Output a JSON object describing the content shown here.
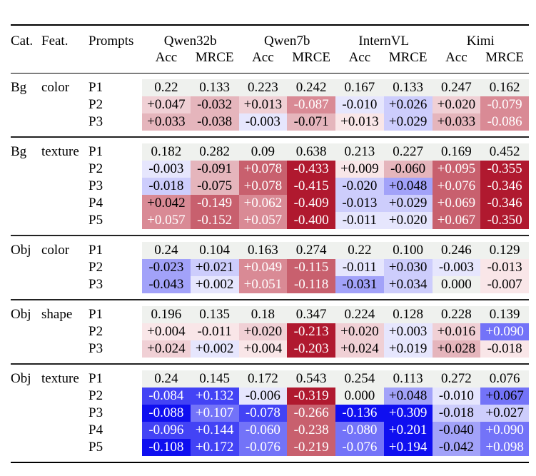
{
  "header": {
    "cat": "Cat.",
    "feat": "Feat.",
    "prompts": "Prompts",
    "models": [
      "Qwen32b",
      "Qwen7b",
      "InternVL",
      "Kimi"
    ],
    "metrics": [
      "Acc",
      "MRCE",
      "Acc",
      "MRCE",
      "Acc",
      "MRCE",
      "Acc",
      "MRCE"
    ]
  },
  "colors": {
    "neutral": "#eff1ee",
    "red_scale": [
      "#f9e6e8",
      "#f0d0d5",
      "#e5b5bc",
      "#d98a95",
      "#c8606e",
      "#b0192f"
    ],
    "blue_scale": [
      "#e6e6fd",
      "#cdcdfc",
      "#a2a2f9",
      "#7373f8",
      "#4343f5",
      "#0f0ff0"
    ]
  },
  "groups": [
    {
      "cat": "Bg",
      "feat": "color",
      "rows": [
        {
          "prompt": "P1",
          "cells": [
            [
              "0.22",
              "n",
              0
            ],
            [
              "0.133",
              "n",
              0
            ],
            [
              "0.223",
              "n",
              0
            ],
            [
              "0.242",
              "n",
              0
            ],
            [
              "0.167",
              "n",
              0
            ],
            [
              "0.133",
              "n",
              0
            ],
            [
              "0.247",
              "n",
              0
            ],
            [
              "0.162",
              "n",
              0
            ]
          ]
        },
        {
          "prompt": "P2",
          "cells": [
            [
              "+0.047",
              "r2",
              0
            ],
            [
              "-0.032",
              "r3",
              0
            ],
            [
              "+0.013",
              "r2",
              0
            ],
            [
              "-0.087",
              "r4",
              1
            ],
            [
              "-0.010",
              "b1",
              0
            ],
            [
              "+0.026",
              "b2",
              0
            ],
            [
              "+0.020",
              "r2",
              0
            ],
            [
              "-0.079",
              "r4",
              1
            ]
          ]
        },
        {
          "prompt": "P3",
          "cells": [
            [
              "+0.033",
              "r3",
              0
            ],
            [
              "-0.038",
              "r3",
              0
            ],
            [
              "-0.003",
              "b1",
              0
            ],
            [
              "-0.071",
              "r3",
              0
            ],
            [
              "+0.013",
              "r1",
              0
            ],
            [
              "+0.029",
              "b2",
              0
            ],
            [
              "+0.033",
              "r3",
              0
            ],
            [
              "-0.086",
              "r4",
              1
            ]
          ]
        }
      ]
    },
    {
      "cat": "Bg",
      "feat": "texture",
      "rows": [
        {
          "prompt": "P1",
          "cells": [
            [
              "0.182",
              "n",
              0
            ],
            [
              "0.282",
              "n",
              0
            ],
            [
              "0.09",
              "n",
              0
            ],
            [
              "0.638",
              "n",
              0
            ],
            [
              "0.213",
              "n",
              0
            ],
            [
              "0.227",
              "n",
              0
            ],
            [
              "0.169",
              "n",
              0
            ],
            [
              "0.452",
              "n",
              0
            ]
          ]
        },
        {
          "prompt": "P2",
          "cells": [
            [
              "-0.003",
              "b1",
              0
            ],
            [
              "-0.091",
              "r3",
              0
            ],
            [
              "+0.078",
              "r5",
              1
            ],
            [
              "-0.433",
              "r6",
              1
            ],
            [
              "+0.009",
              "r1",
              0
            ],
            [
              "-0.060",
              "r3",
              0
            ],
            [
              "+0.095",
              "r5",
              1
            ],
            [
              "-0.355",
              "r6",
              1
            ]
          ]
        },
        {
          "prompt": "P3",
          "cells": [
            [
              "-0.018",
              "b2",
              0
            ],
            [
              "-0.075",
              "r3",
              0
            ],
            [
              "+0.078",
              "r5",
              1
            ],
            [
              "-0.415",
              "r6",
              1
            ],
            [
              "-0.020",
              "b2",
              0
            ],
            [
              "+0.048",
              "b3",
              0
            ],
            [
              "+0.076",
              "r5",
              1
            ],
            [
              "-0.346",
              "r6",
              1
            ]
          ]
        },
        {
          "prompt": "P4",
          "cells": [
            [
              "+0.042",
              "r4",
              0
            ],
            [
              "-0.149",
              "r5",
              1
            ],
            [
              "+0.062",
              "r4",
              1
            ],
            [
              "-0.409",
              "r6",
              1
            ],
            [
              "-0.013",
              "b2",
              0
            ],
            [
              "+0.029",
              "b2",
              0
            ],
            [
              "+0.069",
              "r5",
              1
            ],
            [
              "-0.346",
              "r6",
              1
            ]
          ]
        },
        {
          "prompt": "P5",
          "cells": [
            [
              "+0.057",
              "r4",
              1
            ],
            [
              "-0.152",
              "r5",
              1
            ],
            [
              "+0.057",
              "r4",
              1
            ],
            [
              "-0.400",
              "r6",
              1
            ],
            [
              "-0.011",
              "b1",
              0
            ],
            [
              "+0.020",
              "b1",
              0
            ],
            [
              "+0.067",
              "r5",
              1
            ],
            [
              "-0.350",
              "r6",
              1
            ]
          ]
        }
      ]
    },
    {
      "cat": "Obj",
      "feat": "color",
      "rows": [
        {
          "prompt": "P1",
          "cells": [
            [
              "0.24",
              "n",
              0
            ],
            [
              "0.104",
              "n",
              0
            ],
            [
              "0.163",
              "n",
              0
            ],
            [
              "0.274",
              "n",
              0
            ],
            [
              "0.22",
              "n",
              0
            ],
            [
              "0.100",
              "n",
              0
            ],
            [
              "0.246",
              "n",
              0
            ],
            [
              "0.129",
              "n",
              0
            ]
          ]
        },
        {
          "prompt": "P2",
          "cells": [
            [
              "-0.023",
              "b3",
              0
            ],
            [
              "+0.021",
              "b2",
              0
            ],
            [
              "+0.049",
              "r4",
              1
            ],
            [
              "-0.115",
              "r5",
              1
            ],
            [
              "-0.011",
              "b1",
              0
            ],
            [
              "+0.030",
              "b2",
              0
            ],
            [
              "-0.003",
              "b1",
              0
            ],
            [
              "-0.013",
              "r1",
              0
            ]
          ]
        },
        {
          "prompt": "P3",
          "cells": [
            [
              "-0.043",
              "b3",
              0
            ],
            [
              "+0.002",
              "b1",
              0
            ],
            [
              "+0.051",
              "r4",
              1
            ],
            [
              "-0.118",
              "r5",
              1
            ],
            [
              "-0.031",
              "b3",
              0
            ],
            [
              "+0.034",
              "b2",
              0
            ],
            [
              "0.000",
              "n",
              0
            ],
            [
              "-0.007",
              "r1",
              0
            ]
          ]
        }
      ]
    },
    {
      "cat": "Obj",
      "feat": "shape",
      "rows": [
        {
          "prompt": "P1",
          "cells": [
            [
              "0.196",
              "n",
              0
            ],
            [
              "0.135",
              "n",
              0
            ],
            [
              "0.18",
              "n",
              0
            ],
            [
              "0.347",
              "n",
              0
            ],
            [
              "0.224",
              "n",
              0
            ],
            [
              "0.128",
              "n",
              0
            ],
            [
              "0.228",
              "n",
              0
            ],
            [
              "0.139",
              "n",
              0
            ]
          ]
        },
        {
          "prompt": "P2",
          "cells": [
            [
              "+0.004",
              "r1",
              0
            ],
            [
              "-0.011",
              "r1",
              0
            ],
            [
              "+0.020",
              "r2",
              0
            ],
            [
              "-0.213",
              "r6",
              1
            ],
            [
              "+0.020",
              "r2",
              0
            ],
            [
              "+0.003",
              "b1",
              0
            ],
            [
              "+0.016",
              "r2",
              0
            ],
            [
              "+0.090",
              "b4",
              1
            ]
          ]
        },
        {
          "prompt": "P3",
          "cells": [
            [
              "+0.024",
              "r2",
              0
            ],
            [
              "+0.002",
              "b1",
              0
            ],
            [
              "+0.004",
              "r1",
              0
            ],
            [
              "-0.203",
              "r6",
              1
            ],
            [
              "+0.024",
              "r2",
              0
            ],
            [
              "+0.019",
              "b1",
              0
            ],
            [
              "+0.028",
              "r3",
              0
            ],
            [
              "-0.018",
              "r1",
              0
            ]
          ]
        }
      ]
    },
    {
      "cat": "Obj",
      "feat": "texture",
      "rows": [
        {
          "prompt": "P1",
          "cells": [
            [
              "0.24",
              "n",
              0
            ],
            [
              "0.145",
              "n",
              0
            ],
            [
              "0.172",
              "n",
              0
            ],
            [
              "0.543",
              "n",
              0
            ],
            [
              "0.254",
              "n",
              0
            ],
            [
              "0.113",
              "n",
              0
            ],
            [
              "0.272",
              "n",
              0
            ],
            [
              "0.076",
              "n",
              0
            ]
          ]
        },
        {
          "prompt": "P2",
          "cells": [
            [
              "-0.084",
              "b5",
              1
            ],
            [
              "+0.132",
              "b5",
              1
            ],
            [
              "-0.006",
              "b1",
              0
            ],
            [
              "-0.319",
              "r6",
              1
            ],
            [
              "0.000",
              "n",
              0
            ],
            [
              "+0.048",
              "b3",
              0
            ],
            [
              "-0.010",
              "b1",
              0
            ],
            [
              "+0.067",
              "b4",
              0
            ]
          ]
        },
        {
          "prompt": "P3",
          "cells": [
            [
              "-0.088",
              "b6",
              1
            ],
            [
              "+0.107",
              "b4",
              1
            ],
            [
              "-0.078",
              "b5",
              1
            ],
            [
              "-0.266",
              "r5",
              1
            ],
            [
              "-0.136",
              "b6",
              1
            ],
            [
              "+0.309",
              "b6",
              1
            ],
            [
              "-0.018",
              "b2",
              0
            ],
            [
              "+0.027",
              "b2",
              0
            ]
          ]
        },
        {
          "prompt": "P4",
          "cells": [
            [
              "-0.096",
              "b5",
              1
            ],
            [
              "+0.144",
              "b5",
              1
            ],
            [
              "-0.060",
              "b4",
              1
            ],
            [
              "-0.238",
              "r5",
              1
            ],
            [
              "-0.080",
              "b4",
              1
            ],
            [
              "+0.201",
              "b6",
              1
            ],
            [
              "-0.040",
              "b3",
              0
            ],
            [
              "+0.090",
              "b4",
              1
            ]
          ]
        },
        {
          "prompt": "P5",
          "cells": [
            [
              "-0.108",
              "b6",
              1
            ],
            [
              "+0.172",
              "b5",
              1
            ],
            [
              "-0.076",
              "b4",
              1
            ],
            [
              "-0.219",
              "r5",
              1
            ],
            [
              "-0.076",
              "b4",
              1
            ],
            [
              "+0.194",
              "b6",
              1
            ],
            [
              "-0.042",
              "b3",
              0
            ],
            [
              "+0.098",
              "b4",
              1
            ]
          ]
        }
      ]
    }
  ]
}
